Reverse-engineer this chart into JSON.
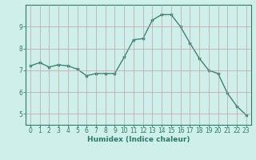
{
  "x": [
    0,
    1,
    2,
    3,
    4,
    5,
    6,
    7,
    8,
    9,
    10,
    11,
    12,
    13,
    14,
    15,
    16,
    17,
    18,
    19,
    20,
    21,
    22,
    23
  ],
  "y": [
    7.2,
    7.35,
    7.15,
    7.25,
    7.2,
    7.05,
    6.75,
    6.85,
    6.85,
    6.85,
    7.6,
    8.4,
    8.45,
    9.3,
    9.55,
    9.55,
    9.0,
    8.25,
    7.55,
    7.0,
    6.85,
    5.95,
    5.35,
    4.95
  ],
  "line_color": "#2d7a6b",
  "marker": "*",
  "marker_size": 3,
  "bg_color": "#cff0ea",
  "grid_color": "#c4a0a0",
  "xlabel": "Humidex (Indice chaleur)",
  "xlim": [
    -0.5,
    23.5
  ],
  "ylim": [
    4.5,
    10.0
  ],
  "yticks": [
    5,
    6,
    7,
    8,
    9
  ],
  "xticks": [
    0,
    1,
    2,
    3,
    4,
    5,
    6,
    7,
    8,
    9,
    10,
    11,
    12,
    13,
    14,
    15,
    16,
    17,
    18,
    19,
    20,
    21,
    22,
    23
  ],
  "tick_color": "#2d7a6b",
  "label_fontsize": 6.5,
  "tick_fontsize": 5.5,
  "spine_color": "#2d7a6b",
  "linewidth": 0.9
}
